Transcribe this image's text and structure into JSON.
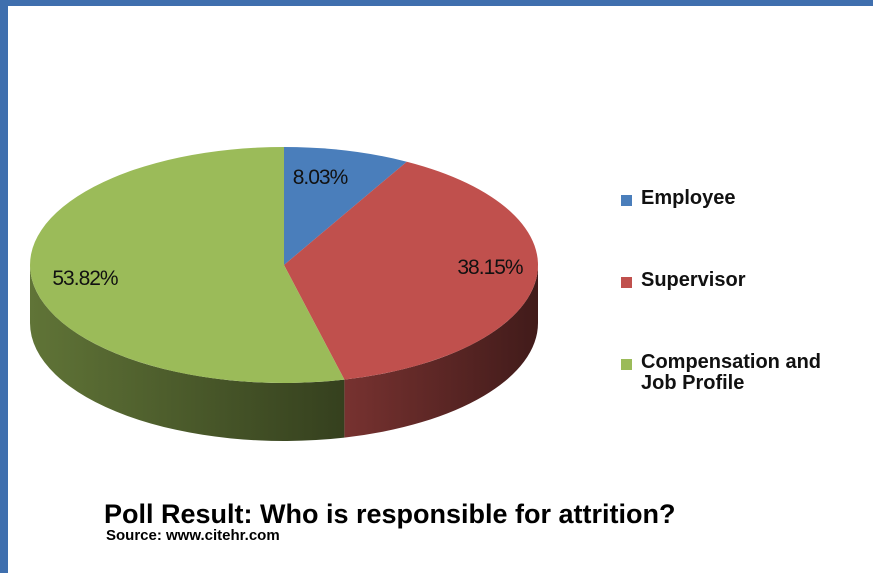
{
  "chart_data": {
    "type": "pie",
    "title": "Poll Result: Who is responsible for attrition?",
    "subtitle": "Source: www.citehr.com",
    "legend_position": "right",
    "slices": [
      {
        "name": "Employee",
        "value": 8.03,
        "label": "8.03%",
        "color": "#4a7ebb"
      },
      {
        "name": "Supervisor",
        "value": 38.15,
        "label": "38.15%",
        "color": "#c0504d"
      },
      {
        "name": "Compensation and\nJob Profile",
        "value": 53.82,
        "label": "53.82%",
        "color": "#9bbb59"
      }
    ]
  },
  "frame_color": "#3f6fae"
}
